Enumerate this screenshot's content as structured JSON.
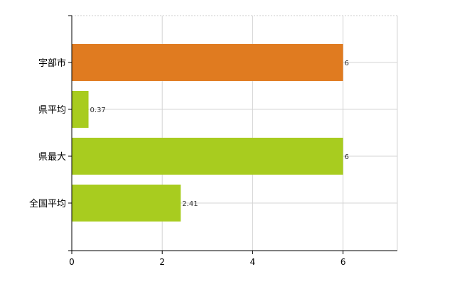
{
  "chart_data": {
    "type": "bar",
    "orientation": "horizontal",
    "categories": [
      "宇部市",
      "県平均",
      "県最大",
      "全国平均"
    ],
    "values": [
      6,
      0.37,
      6,
      2.41
    ],
    "value_labels": [
      "6",
      "0.37",
      "6",
      "2.41"
    ],
    "bar_colors": [
      "#E07B20",
      "#A8CC1F",
      "#A8CC1F",
      "#A8CC1F"
    ],
    "xlim": [
      0,
      7.2
    ],
    "xticks": [
      0,
      2,
      4,
      6
    ],
    "xtick_labels": [
      "0",
      "2",
      "4",
      "6"
    ],
    "grid": true,
    "legend": false,
    "title": "",
    "xlabel": "",
    "ylabel": ""
  }
}
